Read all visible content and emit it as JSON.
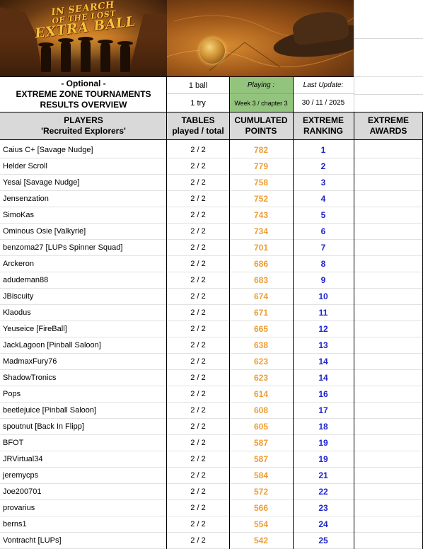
{
  "banner": {
    "line1": "IN SEARCH",
    "line2": "OF THE LOST",
    "line3": "EXTRA BALL"
  },
  "header": {
    "optional": "- Optional -",
    "title_line1": "EXTREME ZONE TOURNAMENTS",
    "title_line2": "RESULTS OVERVIEW",
    "balls": "1 ball",
    "tries": "1 try",
    "playing_label": "Playing :",
    "playing_value": "Week 3 / chapter 3",
    "update_label": "Last Update:",
    "update_value": "30 / 11 / 2025"
  },
  "columns": {
    "players_1": "PLAYERS",
    "players_2": "'Recruited Explorers'",
    "tables_1": "TABLES",
    "tables_2": "played / total",
    "points_1": "CUMULATED",
    "points_2": "POINTS",
    "rank_1": "EXTREME",
    "rank_2": "RANKING",
    "awards_1": "EXTREME",
    "awards_2": "AWARDS"
  },
  "colors": {
    "playing_bg": "#93c47d",
    "points": "#ed9e36",
    "rank": "#1f25cc",
    "header_bg": "#d9d9d9"
  },
  "players": [
    {
      "name": "Caius C+ [Savage Nudge]",
      "tables": "2 / 2",
      "points": "782",
      "rank": "1"
    },
    {
      "name": "Helder Scroll",
      "tables": "2 / 2",
      "points": "779",
      "rank": "2"
    },
    {
      "name": "Yesai [Savage Nudge]",
      "tables": "2 / 2",
      "points": "758",
      "rank": "3"
    },
    {
      "name": "Jensenzation",
      "tables": "2 / 2",
      "points": "752",
      "rank": "4"
    },
    {
      "name": "SimoKas",
      "tables": "2 / 2",
      "points": "743",
      "rank": "5"
    },
    {
      "name": "Ominous Osie [Valkyrie]",
      "tables": "2 / 2",
      "points": "734",
      "rank": "6"
    },
    {
      "name": "benzoma27 [LUPs Spinner Squad]",
      "tables": "2 / 2",
      "points": "701",
      "rank": "7"
    },
    {
      "name": "Arckeron",
      "tables": "2 / 2",
      "points": "686",
      "rank": "8"
    },
    {
      "name": "adudeman88",
      "tables": "2 / 2",
      "points": "683",
      "rank": "9"
    },
    {
      "name": "JBiscuity",
      "tables": "2 / 2",
      "points": "674",
      "rank": "10"
    },
    {
      "name": "Klaodus",
      "tables": "2 / 2",
      "points": "671",
      "rank": "11"
    },
    {
      "name": "Yeuseice [FireBall]",
      "tables": "2 / 2",
      "points": "665",
      "rank": "12"
    },
    {
      "name": "JackLagoon [Pinball Saloon]",
      "tables": "2 / 2",
      "points": "638",
      "rank": "13"
    },
    {
      "name": "MadmaxFury76",
      "tables": "2 / 2",
      "points": "623",
      "rank": "14"
    },
    {
      "name": "ShadowTronics",
      "tables": "2 / 2",
      "points": "623",
      "rank": "14"
    },
    {
      "name": "Pops",
      "tables": "2 / 2",
      "points": "614",
      "rank": "16"
    },
    {
      "name": "beetlejuice [Pinball Saloon]",
      "tables": "2 / 2",
      "points": "608",
      "rank": "17"
    },
    {
      "name": "spoutnut [Back In Flipp]",
      "tables": "2 / 2",
      "points": "605",
      "rank": "18"
    },
    {
      "name": "BFOT",
      "tables": "2 / 2",
      "points": "587",
      "rank": "19"
    },
    {
      "name": "JRVirtual34",
      "tables": "2 / 2",
      "points": "587",
      "rank": "19"
    },
    {
      "name": "jeremycps",
      "tables": "2 / 2",
      "points": "584",
      "rank": "21"
    },
    {
      "name": "Joe200701",
      "tables": "2 / 2",
      "points": "572",
      "rank": "22"
    },
    {
      "name": "provarius",
      "tables": "2 / 2",
      "points": "566",
      "rank": "23"
    },
    {
      "name": "berns1",
      "tables": "2 / 2",
      "points": "554",
      "rank": "24"
    },
    {
      "name": "Vontracht [LUPs]",
      "tables": "2 / 2",
      "points": "542",
      "rank": "25"
    }
  ]
}
